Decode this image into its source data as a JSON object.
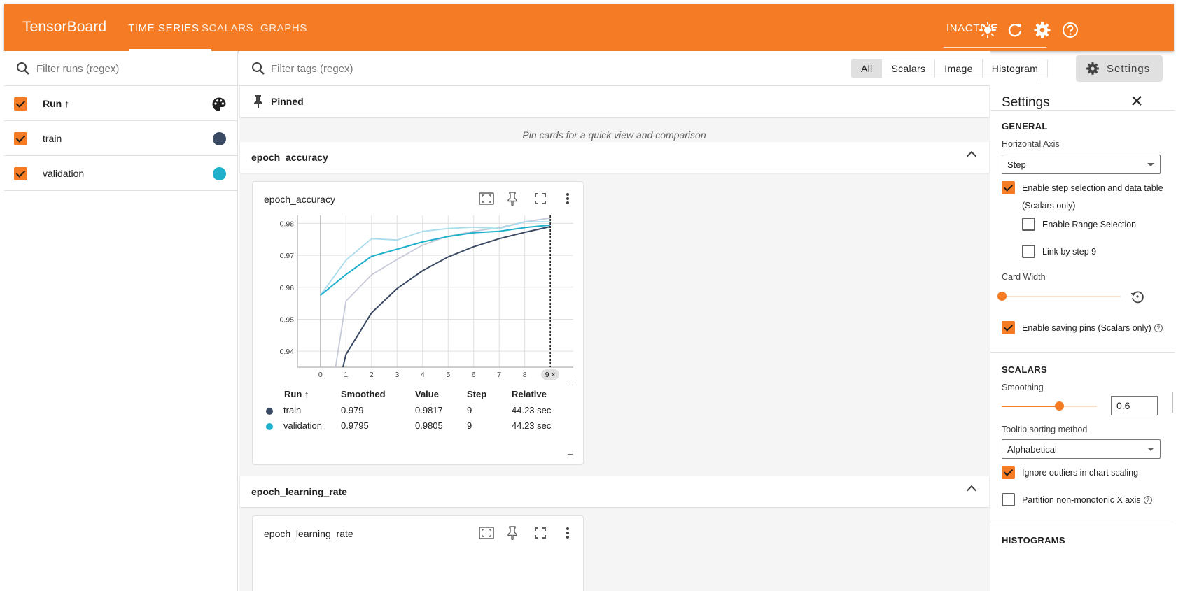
{
  "header": {
    "brand": "TensorBoard",
    "tabs": [
      {
        "label": "TIME SERIES",
        "active": true
      },
      {
        "label": "SCALARS",
        "active": false
      },
      {
        "label": "GRAPHS",
        "active": false
      }
    ],
    "status": "INACTIVE",
    "icons": [
      "brightness-icon",
      "refresh-icon",
      "gear-icon",
      "help-icon"
    ],
    "accent_color": "#f57c24"
  },
  "runs_panel": {
    "filter_placeholder": "Filter runs (regex)",
    "header_label": "Run ↑",
    "runs": [
      {
        "name": "train",
        "color": "#3b4a63",
        "checked": true
      },
      {
        "name": "validation",
        "color": "#1fb0cc",
        "checked": true
      }
    ]
  },
  "main": {
    "filter_placeholder": "Filter tags (regex)",
    "type_filters": [
      "All",
      "Scalars",
      "Image",
      "Histogram"
    ],
    "settings_button": "Settings",
    "pinned_label": "Pinned",
    "pinned_hint": "Pin cards for a quick view and comparison",
    "sections": [
      {
        "name": "epoch_accuracy",
        "card_title": "epoch_accuracy"
      },
      {
        "name": "epoch_learning_rate",
        "card_title": "epoch_learning_rate"
      }
    ],
    "table": {
      "headers": [
        "Run ↑",
        "Smoothed",
        "Value",
        "Step",
        "Relative"
      ],
      "rows": [
        {
          "run": "train",
          "color": "#3b4a63",
          "smoothed": "0.979",
          "value": "0.9817",
          "step": "9",
          "relative": "44.23 sec"
        },
        {
          "run": "validation",
          "color": "#1fb0cc",
          "smoothed": "0.9795",
          "value": "0.9805",
          "step": "9",
          "relative": "44.23 sec"
        }
      ]
    }
  },
  "chart_data": {
    "type": "line",
    "title": "",
    "xlabel": "",
    "ylabel": "",
    "x": [
      0,
      1,
      2,
      3,
      4,
      5,
      6,
      7,
      8,
      9
    ],
    "xlim": [
      -0.9,
      9.9
    ],
    "ylim": [
      0.935,
      0.9825
    ],
    "y_ticks": [
      0.94,
      0.95,
      0.96,
      0.97,
      0.98
    ],
    "x_ticks": [
      0,
      1,
      2,
      3,
      4,
      5,
      6,
      7,
      8,
      9
    ],
    "selected_step": "9",
    "grid": true,
    "series": [
      {
        "name": "train",
        "color": "#3b4a63",
        "raw_color": "#c7cad9",
        "smoothed": [
          0.905,
          0.939,
          0.952,
          0.9596,
          0.9652,
          0.9695,
          0.9727,
          0.9752,
          0.9772,
          0.979
        ],
        "raw": [
          0.905,
          0.9557,
          0.9639,
          0.9687,
          0.9732,
          0.976,
          0.9775,
          0.9787,
          0.9805,
          0.9817
        ]
      },
      {
        "name": "validation",
        "color": "#1fb0cc",
        "raw_color": "#a9dcec",
        "smoothed": [
          0.9575,
          0.964,
          0.9697,
          0.9719,
          0.9742,
          0.9759,
          0.9771,
          0.9775,
          0.9787,
          0.9795
        ],
        "raw": [
          0.9575,
          0.9685,
          0.9752,
          0.9748,
          0.9775,
          0.9784,
          0.9788,
          0.9784,
          0.9805,
          0.9805
        ]
      }
    ]
  },
  "settings": {
    "title": "Settings",
    "general_label": "GENERAL",
    "horizontal_axis_label": "Horizontal Axis",
    "horizontal_axis_value": "Step",
    "step_selection_label": "Enable step selection and data table",
    "step_selection_sub": "(Scalars only)",
    "range_selection_label": "Enable Range Selection",
    "link_step_label": "Link by step 9",
    "card_width_label": "Card Width",
    "card_width_level": 0,
    "saving_pins_label": "Enable saving pins (Scalars only)",
    "scalars_label": "SCALARS",
    "smoothing_label": "Smoothing",
    "smoothing_value": "0.6",
    "smoothing_level": 0.6,
    "tooltip_label": "Tooltip sorting method",
    "tooltip_value": "Alphabetical",
    "ignore_outliers_label": "Ignore outliers in chart scaling",
    "partition_label": "Partition non-monotonic X axis",
    "histograms_label": "HISTOGRAMS"
  }
}
